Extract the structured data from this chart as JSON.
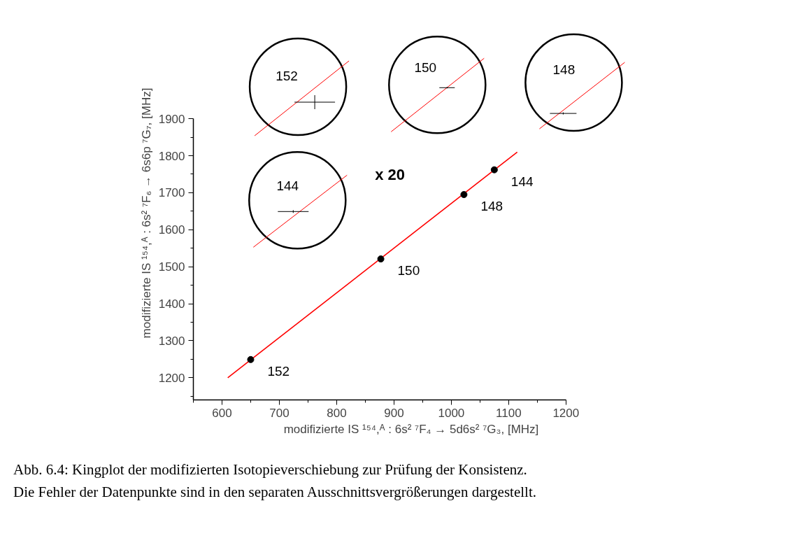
{
  "chart_data": {
    "type": "scatter",
    "xlabel": "modifizierte IS ¹⁵⁴,ᴬ : 6s² ⁷F₄ → 5d6s² ⁷G₃, [MHz]",
    "ylabel": "modifizierte IS ¹⁵⁴,ᴬ : 6s² ⁷F₆ → 6s6p ⁷G₇, [MHz]",
    "series": [
      {
        "type": "line",
        "color": "#ff0000",
        "x": [
          610,
          1115
        ],
        "values": [
          1200,
          1810
        ],
        "marker": "none"
      },
      {
        "color": "#000000",
        "x": [
          650,
          877,
          1022,
          1075
        ],
        "values": [
          1249,
          1521,
          1695,
          1762
        ],
        "marker": "circle"
      }
    ],
    "xlim": [
      550,
      1200
    ],
    "ylim": [
      1140,
      1900
    ],
    "xticks": [
      600,
      700,
      800,
      900,
      1000,
      1100,
      1200
    ],
    "yticks": [
      1200,
      1300,
      1400,
      1500,
      1600,
      1700,
      1800,
      1900
    ],
    "grid": false,
    "annotations": [
      {
        "text": "152",
        "x": 650,
        "y": 1249
      },
      {
        "text": "150",
        "x": 877,
        "y": 1521
      },
      {
        "text": "148",
        "x": 1022,
        "y": 1695
      },
      {
        "text": "144",
        "x": 1075,
        "y": 1762
      },
      "x 20",
      "152",
      "150",
      "148",
      "144",
      "Abb. 6.4: Kingplot der modifizierten Isotopieverschiebung zur Prüfung der Konsistenz.",
      "Die Fehler der Datenpunkte sind in den separaten Ausschnittsvergrößerungen dargestellt."
    ]
  }
}
